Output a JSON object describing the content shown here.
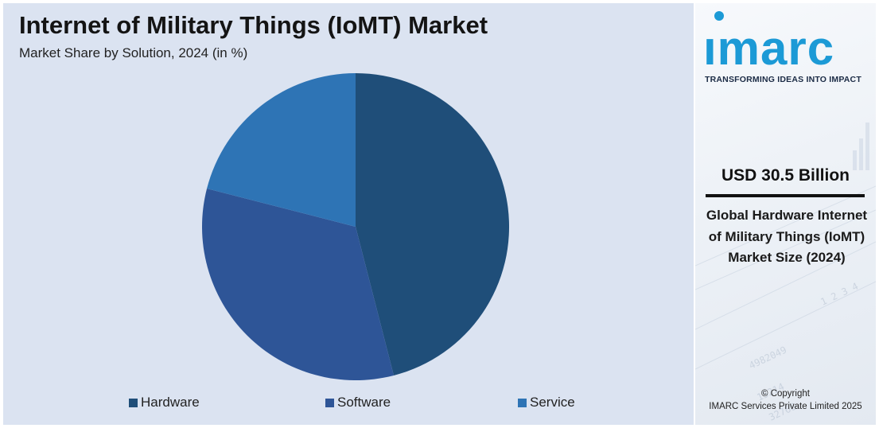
{
  "header": {
    "title": "Internet of Military Things (IoMT) Market",
    "subtitle": "Market Share by Solution, 2024 (in %)"
  },
  "chart_data": {
    "type": "pie",
    "title": "Internet of Military Things (IoMT) Market",
    "subtitle": "Market Share by Solution, 2024 (in %)",
    "categories": [
      "Hardware",
      "Software",
      "Service"
    ],
    "values": [
      46,
      33,
      21
    ],
    "colors": [
      "#1f4e79",
      "#2e5597",
      "#2e74b5"
    ],
    "start_angle_deg": 0,
    "direction": "clockwise",
    "legend": "bottom",
    "data_labels": false
  },
  "legend": {
    "items": [
      {
        "label": "Hardware",
        "color": "#1f4e79"
      },
      {
        "label": "Software",
        "color": "#2e5597"
      },
      {
        "label": "Service",
        "color": "#2e74b5"
      }
    ]
  },
  "sidebar": {
    "logo_text": "ımarc",
    "tagline": "TRANSFORMING IDEAS INTO IMPACT",
    "market_size": "USD 30.5 Billion",
    "caption": "Global Hardware Internet of Military Things (IoMT) Market Size (2024)",
    "copyright_line1": "© Copyright",
    "copyright_line2": "IMARC Services Private Limited 2025",
    "brand_color": "#1c9ad6"
  }
}
